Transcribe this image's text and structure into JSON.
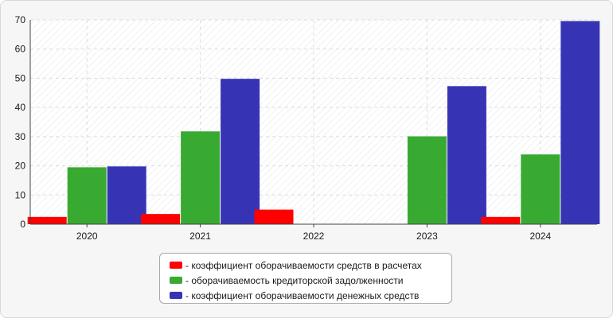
{
  "chart_data": {
    "type": "bar",
    "categories": [
      "2020",
      "2021",
      "2022",
      "2023",
      "2024"
    ],
    "series": [
      {
        "name": "- коэффициент оборачиваемости средств в расчетах",
        "color": "#ff0000",
        "values": [
          2.5,
          3.5,
          5.0,
          null,
          2.5
        ]
      },
      {
        "name": "- оборачиваемость кредиторской задолженности",
        "color": "#38aa32",
        "values": [
          19.5,
          31.8,
          null,
          30.1,
          23.9
        ]
      },
      {
        "name": "- коэффициент оборачиваемости денежных средств",
        "color": "#3634b5",
        "values": [
          19.8,
          49.8,
          null,
          47.3,
          69.6
        ]
      }
    ],
    "y_ticks": [
      "0",
      "10",
      "20",
      "30",
      "40",
      "50",
      "60",
      "70"
    ],
    "ylim": [
      0,
      70
    ],
    "grid": true,
    "legend_position": "bottom"
  }
}
